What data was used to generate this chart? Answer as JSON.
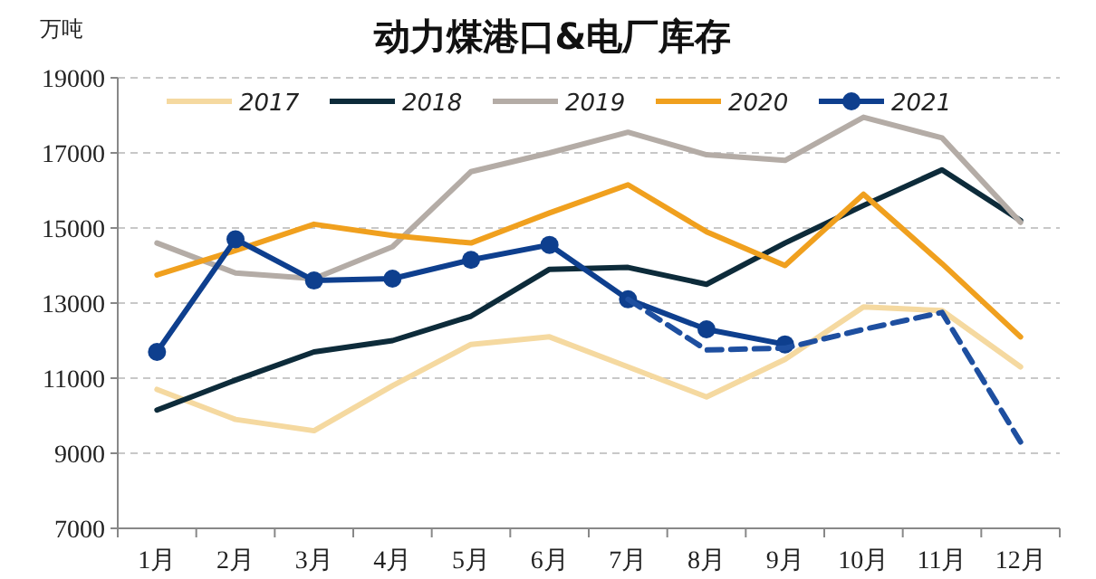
{
  "chart_data": {
    "type": "line",
    "title": "动力煤港口&电厂库存",
    "ylabel": "万吨",
    "categories": [
      "1月",
      "2月",
      "3月",
      "4月",
      "5月",
      "6月",
      "7月",
      "8月",
      "9月",
      "10月",
      "11月",
      "12月"
    ],
    "ylim": [
      7000,
      19000
    ],
    "yticks": [
      7000,
      9000,
      11000,
      13000,
      15000,
      17000,
      19000
    ],
    "grid": "y",
    "legend": "top",
    "series": [
      {
        "name": "2017",
        "color": "#f5d9a0",
        "values": [
          10700,
          9900,
          9600,
          10800,
          11900,
          12100,
          11300,
          10500,
          11500,
          12900,
          12800,
          11300
        ]
      },
      {
        "name": "2018",
        "color": "#0d2b3a",
        "values": [
          10150,
          10950,
          11700,
          12000,
          12650,
          13900,
          13950,
          13500,
          14600,
          15600,
          16550,
          15200
        ]
      },
      {
        "name": "2019",
        "color": "#b4aca6",
        "values": [
          14600,
          13800,
          13650,
          14500,
          16500,
          17000,
          17550,
          16950,
          16800,
          17950,
          17400,
          15150
        ]
      },
      {
        "name": "2020",
        "color": "#f0a01e",
        "values": [
          13750,
          14400,
          15100,
          14800,
          14600,
          15400,
          16150,
          14900,
          14000,
          15900,
          14050,
          12100
        ]
      },
      {
        "name": "2021",
        "color": "#0e3f8e",
        "marker": "circle",
        "values": [
          11700,
          14700,
          13600,
          13650,
          14150,
          14550,
          13100,
          12300,
          11900,
          null,
          null,
          null
        ]
      },
      {
        "color": "#1e4fa0",
        "line_style": "dashed",
        "values": [
          null,
          null,
          null,
          null,
          null,
          null,
          13100,
          11750,
          11800,
          12300,
          12750,
          9300
        ]
      }
    ]
  }
}
